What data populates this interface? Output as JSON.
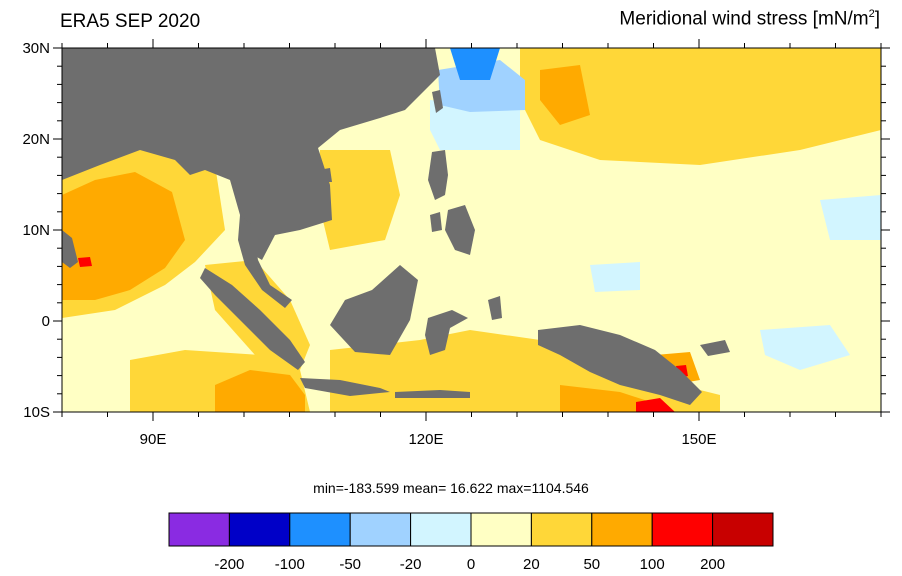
{
  "header": {
    "left_title": "ERA5 SEP 2020",
    "right_title_main": "Meridional wind stress [mN/m",
    "right_title_sup": "2",
    "right_title_end": "]"
  },
  "map": {
    "lon_range": [
      80,
      170
    ],
    "lat_range": [
      -10,
      30
    ],
    "lat_tick_labels": [
      "30N",
      "20N",
      "10N",
      "0",
      "10S"
    ],
    "lon_tick_labels": [
      "90E",
      "120E",
      "150E"
    ],
    "land_color": "#6e6e6e",
    "background_field_color": "#ffffc4"
  },
  "stats": {
    "text": "min=-183.599  mean=  16.622  max=1104.546"
  },
  "colorbar": {
    "colors": [
      "#8a2be2",
      "#0000c8",
      "#1e90ff",
      "#a0d2ff",
      "#d2f5ff",
      "#ffffc4",
      "#ffd738",
      "#ffaa00",
      "#ff0000",
      "#c80000"
    ],
    "labels": [
      "-200",
      "-100",
      "-50",
      "-20",
      "0",
      "20",
      "50",
      "100",
      "200"
    ]
  }
}
